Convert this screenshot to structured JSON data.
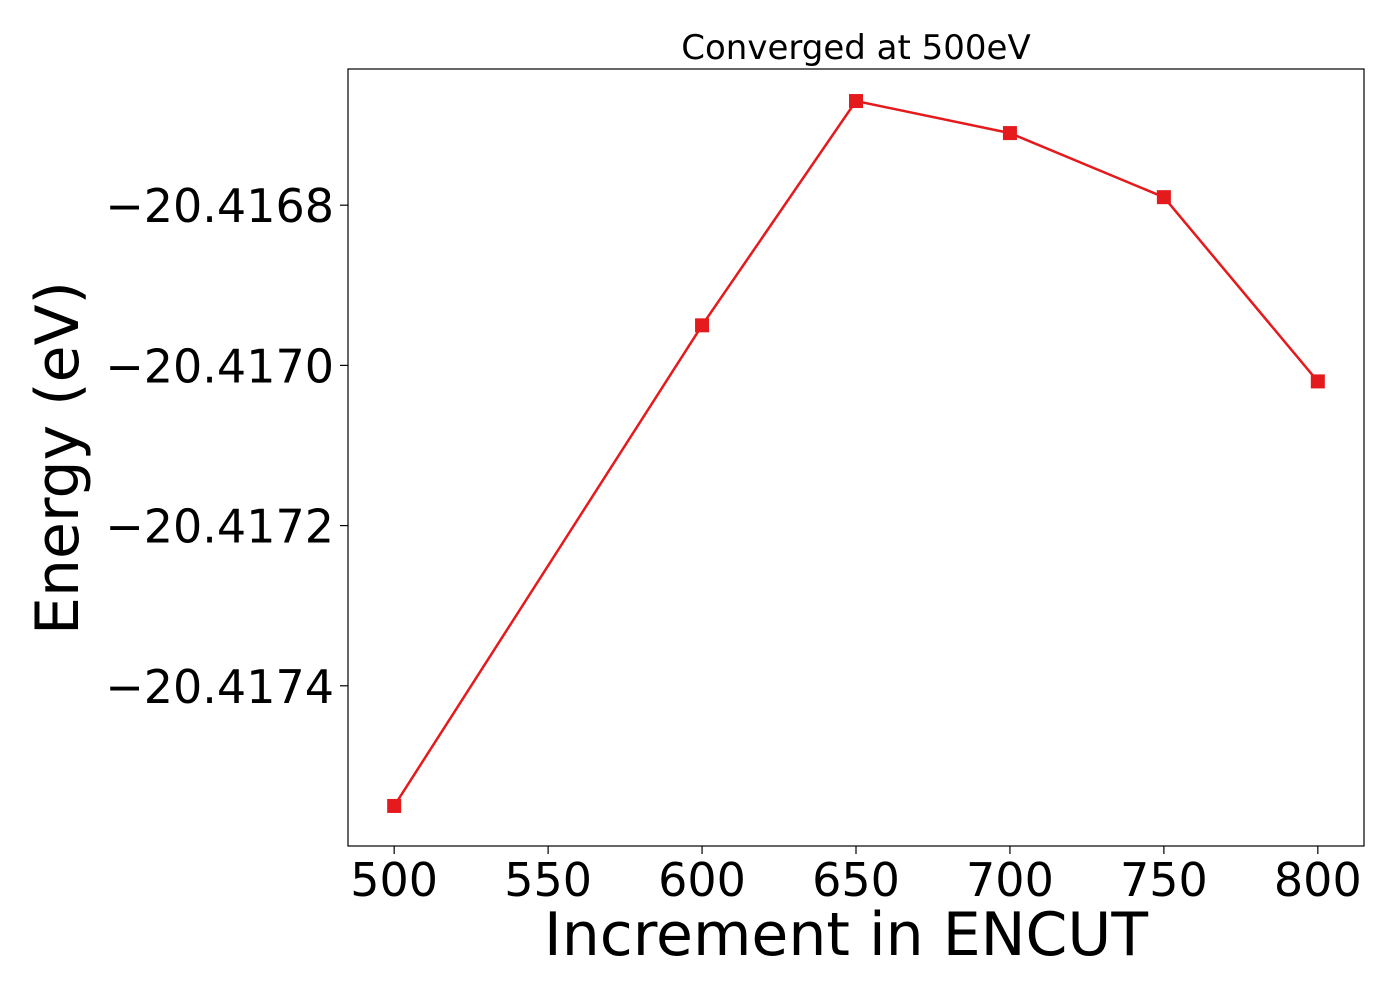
{
  "chart_data": {
    "type": "line",
    "title": "Converged at 500eV",
    "xlabel": "Increment in ENCUT",
    "ylabel": "Energy (eV)",
    "x": [
      500,
      600,
      650,
      700,
      750,
      800
    ],
    "series": [
      {
        "values": [
          -20.41755,
          -20.41695,
          -20.41667,
          -20.41671,
          -20.41679,
          -20.41702
        ],
        "color": "#e41a1c",
        "marker": "square"
      }
    ],
    "xticks": [
      500,
      550,
      600,
      650,
      700,
      750,
      800
    ],
    "yticks": [
      -20.4174,
      -20.4172,
      -20.417,
      -20.4168
    ],
    "ytick_labels": [
      "−20.4174",
      "−20.4172",
      "−20.4170",
      "−20.4168"
    ],
    "xlim": [
      485,
      815
    ],
    "ylim": [
      -20.4176,
      -20.41663
    ],
    "grid": false,
    "legend": "none"
  }
}
